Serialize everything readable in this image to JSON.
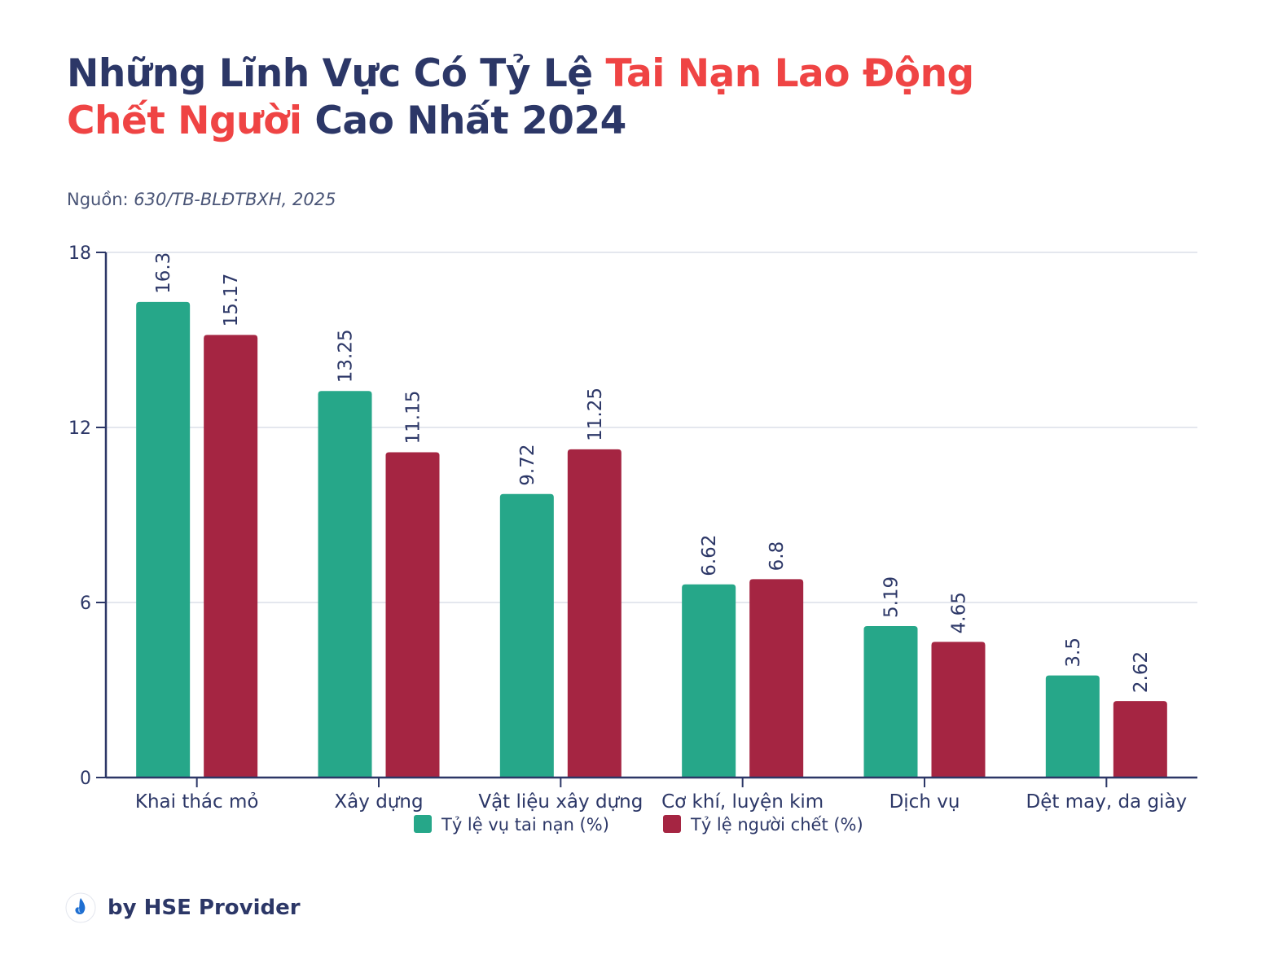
{
  "title": {
    "part1": "Những Lĩnh Vực Có Tỷ Lệ ",
    "part2": "Tai Nạn  Lao Động",
    "part3": "Chết Người",
    "part4": " Cao Nhất 2024"
  },
  "source": {
    "label": "Nguồn: ",
    "value": "630/TB-BLĐTBXH, 2025"
  },
  "footer": {
    "byline": "by HSE Provider",
    "logo_icon": "hse-provider-logo-icon"
  },
  "chart_data": {
    "type": "bar",
    "categories": [
      "Khai thác mỏ",
      "Xây dựng",
      "Vật liệu xây dựng",
      "Cơ khí, luyện kim",
      "Dịch vụ",
      "Dệt may, da giày"
    ],
    "series": [
      {
        "name": "Tỷ lệ vụ tai nạn (%)",
        "color": "#26a789",
        "values": [
          16.3,
          13.25,
          9.72,
          6.62,
          5.19,
          3.5
        ]
      },
      {
        "name": "Tỷ lệ người chết (%)",
        "color": "#a52542",
        "values": [
          15.17,
          11.15,
          11.25,
          6.8,
          4.65,
          2.62
        ]
      }
    ],
    "ylim": [
      0,
      18
    ],
    "yticks": [
      0,
      6,
      12,
      18
    ],
    "grid": true,
    "legend": "bottom-center",
    "xlabel": "",
    "ylabel": ""
  }
}
